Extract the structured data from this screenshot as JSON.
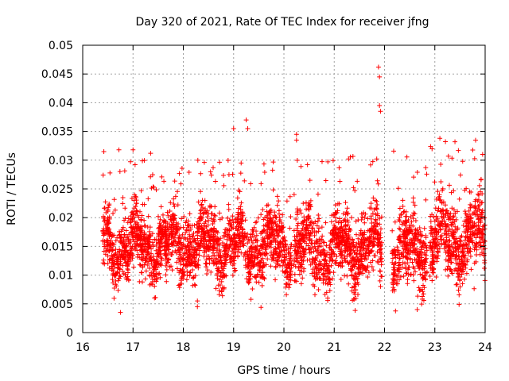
{
  "chart_data": {
    "type": "scatter",
    "title": "Day 320 of 2021, Rate Of TEC Index for receiver jfng",
    "xlabel": "GPS time / hours",
    "ylabel": "ROTI / TECUs",
    "xlim": [
      16,
      24
    ],
    "ylim": [
      0,
      0.05
    ],
    "xticks": [
      "16",
      "17",
      "18",
      "19",
      "20",
      "21",
      "22",
      "23",
      "24"
    ],
    "yticks": [
      "0",
      "0.005",
      "0.01",
      "0.015",
      "0.02",
      "0.025",
      "0.03",
      "0.035",
      "0.04",
      "0.045",
      "0.05"
    ],
    "grid": true,
    "marker": "+",
    "color": "#ff0000",
    "series": [
      {
        "name": "ROTI",
        "segments": [
          {
            "x_start": 16.4,
            "x_end": 20.15,
            "typical_low": 0.008,
            "typical_high": 0.022
          },
          {
            "x_start": 20.2,
            "x_end": 21.95,
            "typical_low": 0.007,
            "typical_high": 0.022
          },
          {
            "x_start": 22.15,
            "x_end": 22.85,
            "typical_low": 0.006,
            "typical_high": 0.022
          },
          {
            "x_start": 22.9,
            "x_end": 24.0,
            "typical_low": 0.008,
            "typical_high": 0.024
          }
        ],
        "notable_points": [
          {
            "x": 16.42,
            "y": 0.0315
          },
          {
            "x": 16.72,
            "y": 0.0318
          },
          {
            "x": 16.75,
            "y": 0.0035
          },
          {
            "x": 17.0,
            "y": 0.0318
          },
          {
            "x": 17.35,
            "y": 0.0312
          },
          {
            "x": 18.28,
            "y": 0.0045
          },
          {
            "x": 18.28,
            "y": 0.0055
          },
          {
            "x": 19.0,
            "y": 0.0355
          },
          {
            "x": 19.25,
            "y": 0.037
          },
          {
            "x": 19.28,
            "y": 0.0355
          },
          {
            "x": 19.15,
            "y": 0.0295
          },
          {
            "x": 20.25,
            "y": 0.0345
          },
          {
            "x": 20.25,
            "y": 0.0335
          },
          {
            "x": 21.88,
            "y": 0.0462
          },
          {
            "x": 21.9,
            "y": 0.0445
          },
          {
            "x": 21.9,
            "y": 0.0395
          },
          {
            "x": 21.92,
            "y": 0.0385
          },
          {
            "x": 22.65,
            "y": 0.004
          },
          {
            "x": 23.1,
            "y": 0.0338
          },
          {
            "x": 23.4,
            "y": 0.0332
          },
          {
            "x": 23.95,
            "y": 0.031
          }
        ]
      }
    ]
  }
}
